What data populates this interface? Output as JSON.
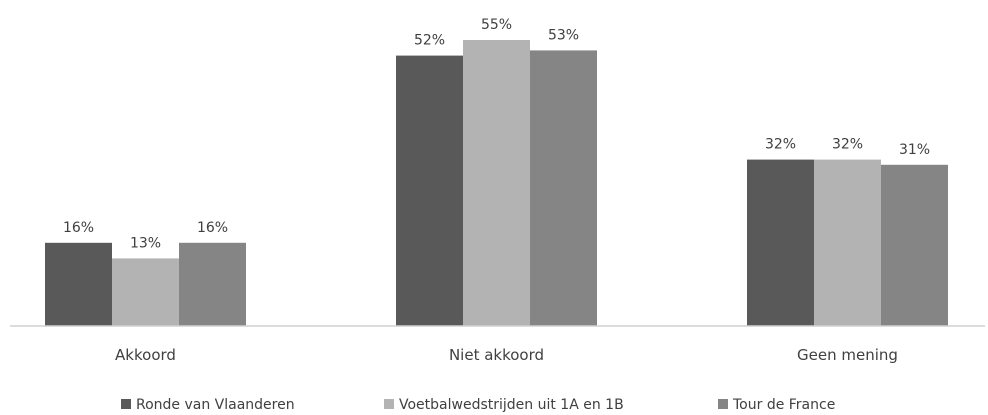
{
  "chart_data": {
    "type": "bar",
    "title": "",
    "xlabel": "",
    "ylabel": "",
    "categories": [
      "Akkoord",
      "Niet akkoord",
      "Geen mening"
    ],
    "series": [
      {
        "name": "Ronde van Vlaanderen",
        "values": [
          16,
          52,
          32
        ],
        "labels": [
          "16%",
          "52%",
          "32%"
        ],
        "color": "#595959"
      },
      {
        "name": "Voetbalwedstrijden uit 1A en 1B",
        "values": [
          13,
          55,
          32
        ],
        "labels": [
          "13%",
          "55%",
          "32%"
        ],
        "color": "#b3b3b3"
      },
      {
        "name": "Tour de France",
        "values": [
          16,
          53,
          31
        ],
        "labels": [
          "16%",
          "53%",
          "31%"
        ],
        "color": "#858585"
      }
    ],
    "ylim": [
      0,
      55
    ],
    "grid": false,
    "legend_position": "bottom"
  }
}
